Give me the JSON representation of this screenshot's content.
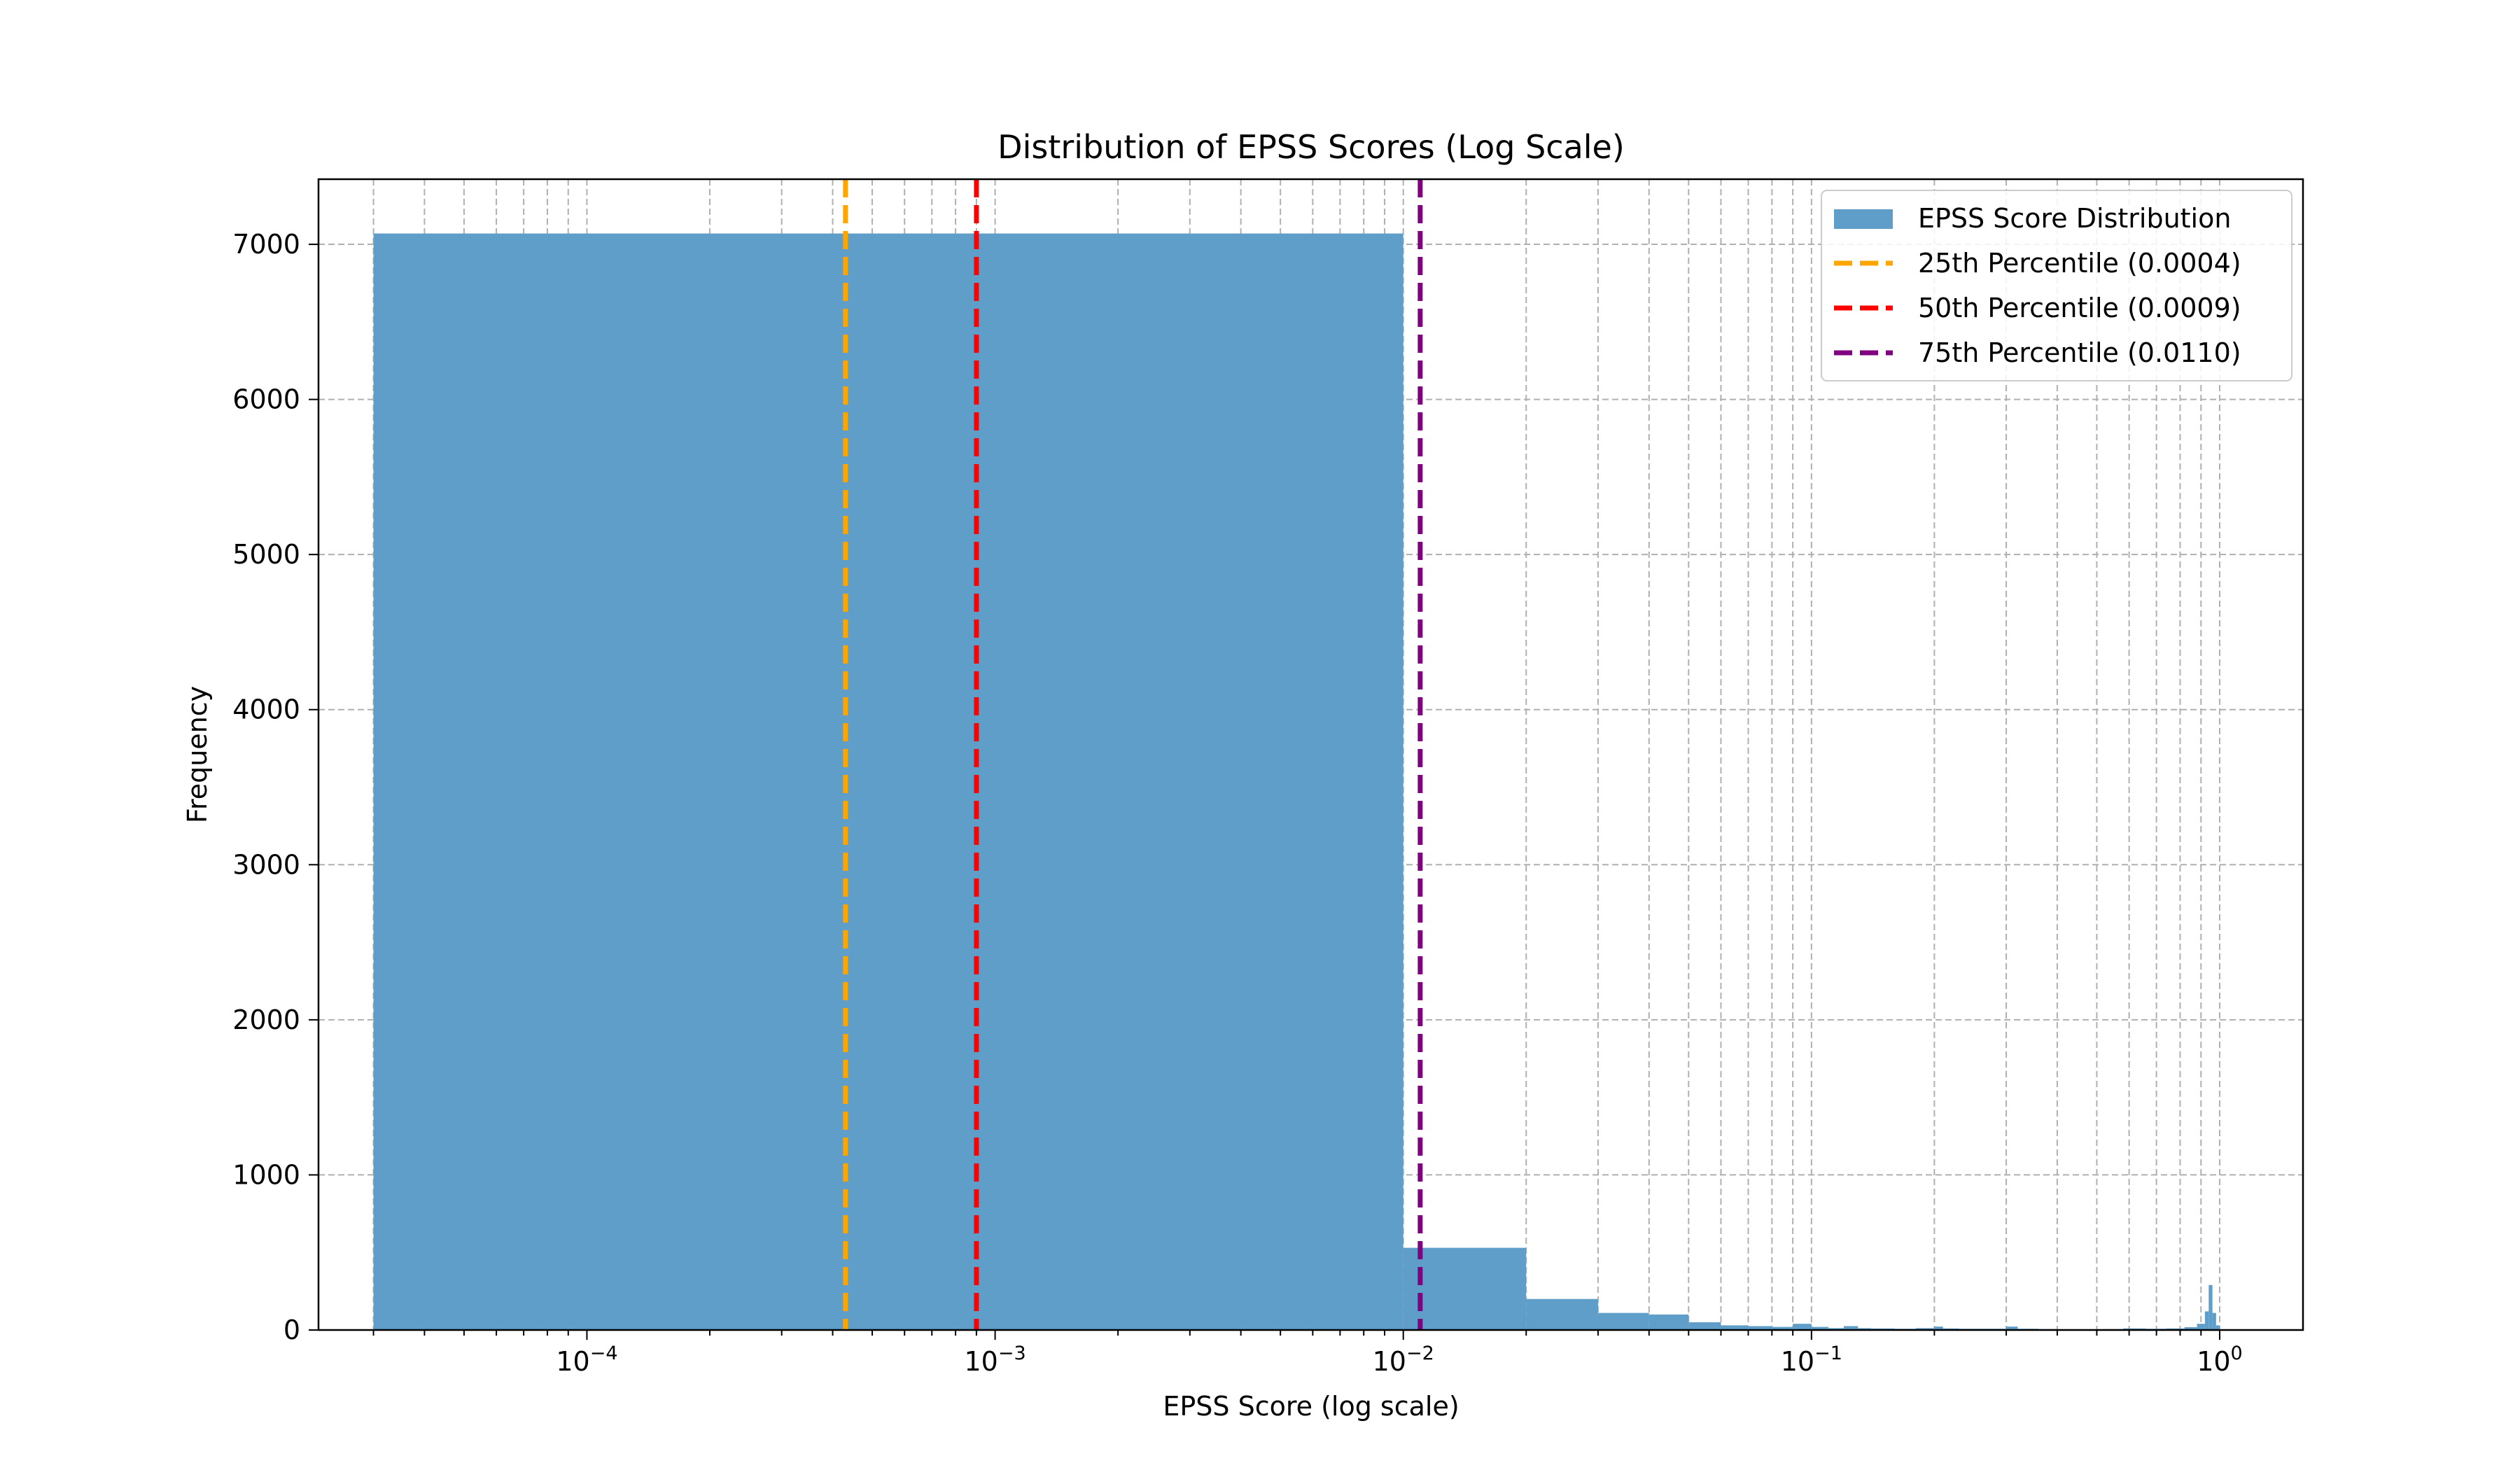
{
  "chart_data": {
    "type": "bar",
    "title": "Distribution of EPSS Scores (Log Scale)",
    "xlabel": "EPSS Score (log scale)",
    "ylabel": "Frequency",
    "xscale": "log",
    "xlim": [
      2.2e-05,
      1.6
    ],
    "ylim": [
      0,
      7420
    ],
    "grid": true,
    "legend_position": "top-right",
    "x_ticks": [
      {
        "value": 0.0001,
        "base": "10",
        "exp": "−4"
      },
      {
        "value": 0.001,
        "base": "10",
        "exp": "−3"
      },
      {
        "value": 0.01,
        "base": "10",
        "exp": "−2"
      },
      {
        "value": 0.1,
        "base": "10",
        "exp": "−1"
      },
      {
        "value": 1,
        "base": "10",
        "exp": "0"
      }
    ],
    "y_ticks": [
      0,
      1000,
      2000,
      3000,
      4000,
      5000,
      6000,
      7000
    ],
    "series": [
      {
        "name": "EPSS Score Distribution",
        "color": "#5f9ec9",
        "bins": [
          {
            "x0": 3e-05,
            "x1": 0.01,
            "count": 7070
          },
          {
            "x0": 0.01,
            "x1": 0.02,
            "count": 530
          },
          {
            "x0": 0.02,
            "x1": 0.03,
            "count": 200
          },
          {
            "x0": 0.03,
            "x1": 0.04,
            "count": 110
          },
          {
            "x0": 0.04,
            "x1": 0.05,
            "count": 100
          },
          {
            "x0": 0.05,
            "x1": 0.06,
            "count": 50
          },
          {
            "x0": 0.06,
            "x1": 0.07,
            "count": 30
          },
          {
            "x0": 0.07,
            "x1": 0.08,
            "count": 25
          },
          {
            "x0": 0.08,
            "x1": 0.09,
            "count": 20
          },
          {
            "x0": 0.09,
            "x1": 0.1,
            "count": 40
          },
          {
            "x0": 0.1,
            "x1": 0.11,
            "count": 20
          },
          {
            "x0": 0.11,
            "x1": 0.12,
            "count": 12
          },
          {
            "x0": 0.12,
            "x1": 0.13,
            "count": 25
          },
          {
            "x0": 0.13,
            "x1": 0.14,
            "count": 12
          },
          {
            "x0": 0.14,
            "x1": 0.16,
            "count": 10
          },
          {
            "x0": 0.16,
            "x1": 0.18,
            "count": 8
          },
          {
            "x0": 0.18,
            "x1": 0.2,
            "count": 12
          },
          {
            "x0": 0.2,
            "x1": 0.21,
            "count": 22
          },
          {
            "x0": 0.21,
            "x1": 0.23,
            "count": 10
          },
          {
            "x0": 0.23,
            "x1": 0.26,
            "count": 8
          },
          {
            "x0": 0.26,
            "x1": 0.3,
            "count": 8
          },
          {
            "x0": 0.3,
            "x1": 0.32,
            "count": 22
          },
          {
            "x0": 0.32,
            "x1": 0.36,
            "count": 8
          },
          {
            "x0": 0.36,
            "x1": 0.4,
            "count": 6
          },
          {
            "x0": 0.4,
            "x1": 0.46,
            "count": 5
          },
          {
            "x0": 0.46,
            "x1": 0.52,
            "count": 5
          },
          {
            "x0": 0.52,
            "x1": 0.58,
            "count": 6
          },
          {
            "x0": 0.58,
            "x1": 0.66,
            "count": 10
          },
          {
            "x0": 0.66,
            "x1": 0.74,
            "count": 8
          },
          {
            "x0": 0.74,
            "x1": 0.82,
            "count": 10
          },
          {
            "x0": 0.82,
            "x1": 0.88,
            "count": 18
          },
          {
            "x0": 0.88,
            "x1": 0.92,
            "count": 40
          },
          {
            "x0": 0.92,
            "x1": 0.94,
            "count": 120
          },
          {
            "x0": 0.94,
            "x1": 0.96,
            "count": 290
          },
          {
            "x0": 0.96,
            "x1": 0.98,
            "count": 110
          },
          {
            "x0": 0.98,
            "x1": 1.0,
            "count": 30
          }
        ]
      }
    ],
    "percentiles": [
      {
        "name": "25th Percentile (0.0004)",
        "value": 0.00043,
        "color": "#ffa500"
      },
      {
        "name": "50th Percentile (0.0009)",
        "value": 0.0009,
        "color": "#ff0000"
      },
      {
        "name": "75th Percentile (0.0110)",
        "value": 0.011,
        "color": "#800080"
      }
    ]
  }
}
